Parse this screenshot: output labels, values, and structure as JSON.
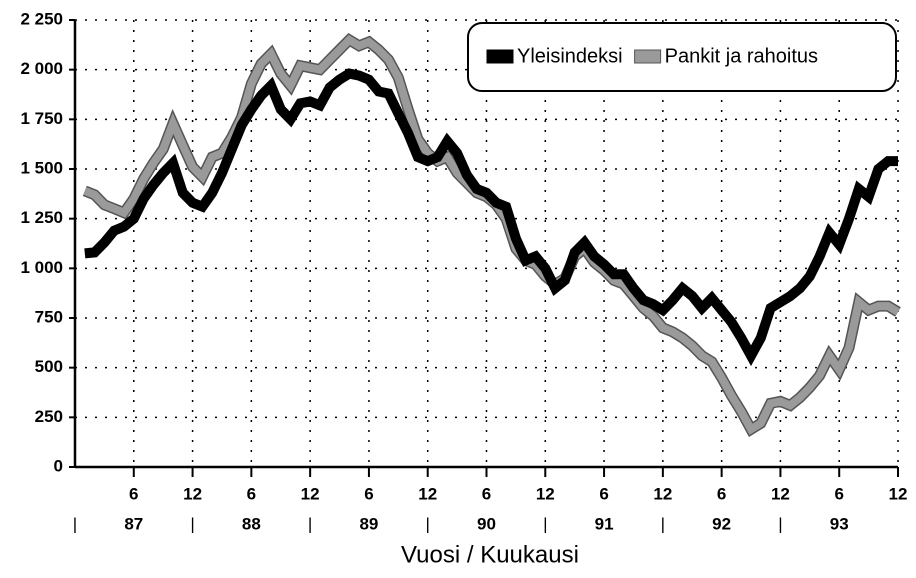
{
  "chart_data": {
    "type": "line",
    "xlabel": "Vuosi / Kuukausi",
    "x": [
      1,
      2,
      3,
      4,
      5,
      6,
      7,
      8,
      9,
      10,
      11,
      12,
      13,
      14,
      15,
      16,
      17,
      18,
      19,
      20,
      21,
      22,
      23,
      24,
      25,
      26,
      27,
      28,
      29,
      30,
      31,
      32,
      33,
      34,
      35,
      36,
      37,
      38,
      39,
      40,
      41,
      42,
      43,
      44,
      45,
      46,
      47,
      48,
      49,
      50,
      51,
      52,
      53,
      54,
      55,
      56,
      57,
      58,
      59,
      60,
      61,
      62,
      63,
      64,
      65,
      66,
      67,
      68,
      69,
      70,
      71,
      72,
      73,
      74,
      75,
      76,
      77,
      78,
      79,
      80,
      81,
      82,
      83,
      84
    ],
    "series": [
      {
        "name": "Yleisindeksi",
        "color": "#000000",
        "values": [
          1075,
          1080,
          1130,
          1190,
          1210,
          1250,
          1350,
          1420,
          1480,
          1530,
          1380,
          1330,
          1310,
          1380,
          1480,
          1600,
          1720,
          1800,
          1870,
          1920,
          1800,
          1750,
          1830,
          1840,
          1820,
          1910,
          1950,
          1980,
          1970,
          1950,
          1890,
          1880,
          1780,
          1680,
          1560,
          1540,
          1560,
          1640,
          1580,
          1470,
          1400,
          1380,
          1330,
          1310,
          1150,
          1040,
          1060,
          1000,
          900,
          940,
          1080,
          1130,
          1060,
          1020,
          970,
          970,
          900,
          840,
          820,
          790,
          840,
          900,
          860,
          800,
          850,
          790,
          730,
          650,
          560,
          650,
          800,
          830,
          860,
          900,
          960,
          1060,
          1180,
          1120,
          1250,
          1400,
          1360,
          1500,
          1540,
          1540
        ]
      },
      {
        "name": "Pankit ja rahoitus",
        "color": "#9a9a9a",
        "values": [
          1390,
          1370,
          1320,
          1300,
          1280,
          1350,
          1450,
          1530,
          1600,
          1730,
          1620,
          1510,
          1460,
          1560,
          1580,
          1660,
          1760,
          1930,
          2030,
          2080,
          1980,
          1920,
          2020,
          2010,
          2000,
          2050,
          2100,
          2150,
          2120,
          2140,
          2100,
          2050,
          1960,
          1800,
          1650,
          1580,
          1540,
          1560,
          1480,
          1430,
          1380,
          1360,
          1320,
          1250,
          1100,
          1040,
          1020,
          960,
          920,
          950,
          1060,
          1100,
          1030,
          990,
          940,
          920,
          860,
          800,
          760,
          700,
          680,
          650,
          610,
          560,
          530,
          450,
          360,
          280,
          190,
          220,
          320,
          330,
          310,
          350,
          400,
          460,
          560,
          490,
          600,
          830,
          790,
          810,
          810,
          780
        ]
      }
    ],
    "xlim": [
      0,
      84
    ],
    "xticks": [
      6,
      12,
      {
        "value": 18,
        "label": "6"
      },
      {
        "value": 24,
        "label": "12"
      },
      {
        "value": 30,
        "label": "6"
      },
      {
        "value": 36,
        "label": "12"
      },
      {
        "value": 42,
        "label": "6"
      },
      {
        "value": 48,
        "label": "12"
      },
      {
        "value": 54,
        "label": "6"
      },
      {
        "value": 60,
        "label": "12"
      },
      {
        "value": 66,
        "label": "6"
      },
      {
        "value": 72,
        "label": "12"
      },
      {
        "value": 78,
        "label": "6"
      },
      {
        "value": 84,
        "label": "12"
      }
    ],
    "year_labels": [
      {
        "value": 6,
        "label": "87"
      },
      {
        "value": 18,
        "label": "88"
      },
      {
        "value": 30,
        "label": "89"
      },
      {
        "value": 42,
        "label": "90"
      },
      {
        "value": 54,
        "label": "91"
      },
      {
        "value": 66,
        "label": "92"
      },
      {
        "value": 78,
        "label": "93"
      }
    ],
    "separators": [
      {
        "value": 0,
        "label": "|"
      },
      {
        "value": 12,
        "label": "|"
      },
      {
        "value": 24,
        "label": "|"
      },
      {
        "value": 36,
        "label": "|"
      },
      {
        "value": 48,
        "label": "|"
      },
      {
        "value": 60,
        "label": "|"
      },
      {
        "value": 72,
        "label": "|"
      }
    ],
    "ylim": [
      0,
      2250
    ],
    "yticks": [
      0,
      250,
      500,
      750,
      {
        "value": 1000,
        "label": "1 000"
      },
      {
        "value": 1250,
        "label": "1 250"
      },
      {
        "value": 1500,
        "label": "1 500"
      },
      {
        "value": 1750,
        "label": "1 750"
      },
      {
        "value": 2000,
        "label": "2 000"
      },
      {
        "value": 2250,
        "label": "2 250"
      }
    ],
    "grid": true,
    "legend": "upper right"
  }
}
